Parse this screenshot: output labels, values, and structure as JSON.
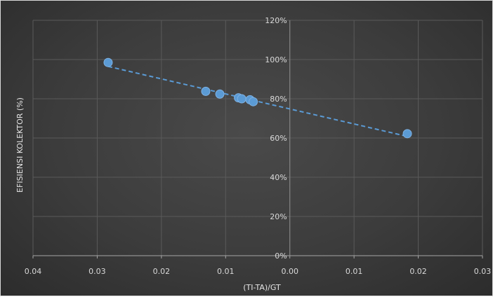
{
  "chart_data": {
    "type": "scatter",
    "title": "",
    "xlabel": "(TI-TA)/GT",
    "ylabel": "EFISIENSI KOLEKTOR (%)",
    "xlim": [
      -0.04,
      0.03
    ],
    "ylim": [
      0,
      1.2
    ],
    "x_tick_values": [
      -0.04,
      -0.03,
      -0.02,
      -0.01,
      0.0,
      0.01,
      0.02,
      0.03
    ],
    "x_tick_labels": [
      "0.04",
      "0.03",
      "0.02",
      "0.01",
      "0.00",
      "0.01",
      "0.02",
      "0.03"
    ],
    "y_tick_values": [
      0,
      0.2,
      0.4,
      0.6,
      0.8,
      1.0,
      1.2
    ],
    "y_tick_labels": [
      "0%",
      "20%",
      "40%",
      "60%",
      "80%",
      "100%",
      "120%"
    ],
    "grid": true,
    "points": [
      {
        "x": -0.0283,
        "y": 0.985
      },
      {
        "x": -0.0131,
        "y": 0.838
      },
      {
        "x": -0.0109,
        "y": 0.824
      },
      {
        "x": -0.008,
        "y": 0.805
      },
      {
        "x": -0.0075,
        "y": 0.8
      },
      {
        "x": -0.0062,
        "y": 0.795
      },
      {
        "x": -0.0057,
        "y": 0.785
      },
      {
        "x": 0.0183,
        "y": 0.622
      }
    ],
    "trendline": {
      "style": "dashed",
      "x": [
        -0.0283,
        0.0183
      ],
      "y": [
        0.965,
        0.608
      ]
    },
    "colors": {
      "marker": "#5b9bd5",
      "trendline": "#5b9bd5",
      "grid": "#5a5a5a",
      "text": "#d9d9d9"
    }
  }
}
